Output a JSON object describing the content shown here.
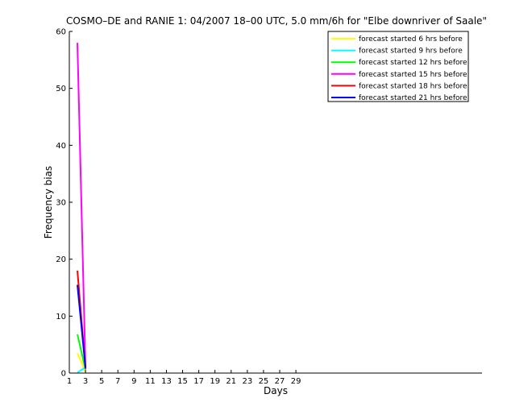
{
  "chart_data": {
    "type": "line",
    "title": "COSMO–DE and RANIE 1: 04/2007 18–00 UTC, 5.0 mm/6h for \"Elbe downriver of Saale\"",
    "xlabel": "Days",
    "ylabel": "Frequency bias",
    "xlim": [
      1,
      52
    ],
    "ylim": [
      0,
      60
    ],
    "xticks": [
      1,
      3,
      5,
      7,
      9,
      11,
      13,
      15,
      17,
      19,
      21,
      23,
      25,
      27,
      29
    ],
    "yticks": [
      0,
      10,
      20,
      30,
      40,
      50,
      60
    ],
    "grid": false,
    "legend_position": "top-right",
    "series": [
      {
        "name": "forecast started 6 hrs before",
        "color": "#ffff00",
        "x": [
          2,
          3
        ],
        "y": [
          3.5,
          0.2
        ]
      },
      {
        "name": "forecast started 9 hrs before",
        "color": "#00ffff",
        "x": [
          2,
          3
        ],
        "y": [
          0.1,
          1.0
        ]
      },
      {
        "name": "forecast started 12 hrs before",
        "color": "#00ff00",
        "x": [
          2,
          3
        ],
        "y": [
          6.8,
          0.6
        ]
      },
      {
        "name": "forecast started 15 hrs before",
        "color": "#ff00ff",
        "x": [
          2,
          3
        ],
        "y": [
          58.0,
          0.7
        ]
      },
      {
        "name": "forecast started 18 hrs before",
        "color": "#ff0000",
        "x": [
          2,
          3
        ],
        "y": [
          18.0,
          0.8
        ]
      },
      {
        "name": "forecast started 21 hrs before",
        "color": "#0000ff",
        "x": [
          2,
          3
        ],
        "y": [
          15.5,
          0.9
        ]
      }
    ]
  }
}
